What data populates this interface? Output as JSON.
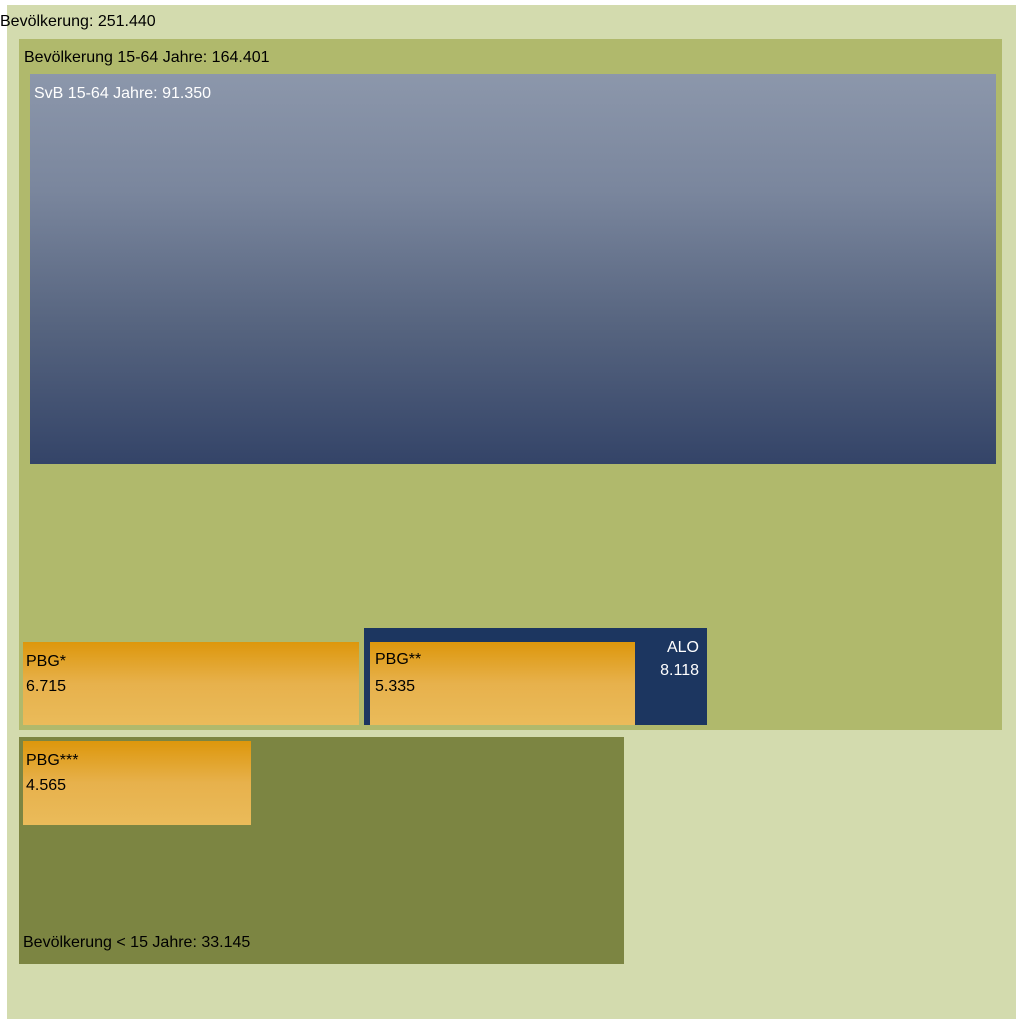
{
  "total": {
    "label": "Bevölkerung:  251.440",
    "value": 251440
  },
  "working_age": {
    "label": "Bevölkerung  15-64  Jahre:  164.401",
    "value": 164401
  },
  "svb": {
    "label": "SvB  15-64  Jahre:  91.350",
    "value": 91350
  },
  "pbg1": {
    "name": "PBG*",
    "value_text": "6.715",
    "value": 6715
  },
  "alo": {
    "name": "ALO",
    "value_text": "8.118",
    "value": 8118
  },
  "pbg2": {
    "name": "PBG**",
    "value_text": "5.335",
    "value": 5335
  },
  "under15": {
    "label": "Bevölkerung  < 15  Jahre:  33.145",
    "value": 33145
  },
  "pbg3": {
    "name": "PBG***",
    "value_text": "4.565",
    "value": 4565
  },
  "colors": {
    "total": "#d3dbae",
    "working_age": "#b0b96c",
    "svb_top": "#8c97ab",
    "svb_bottom": "#344468",
    "alo": "#1c3660",
    "pbg_top": "#dd970c",
    "pbg_bottom": "#eabb5a",
    "under15": "#7c8542"
  }
}
